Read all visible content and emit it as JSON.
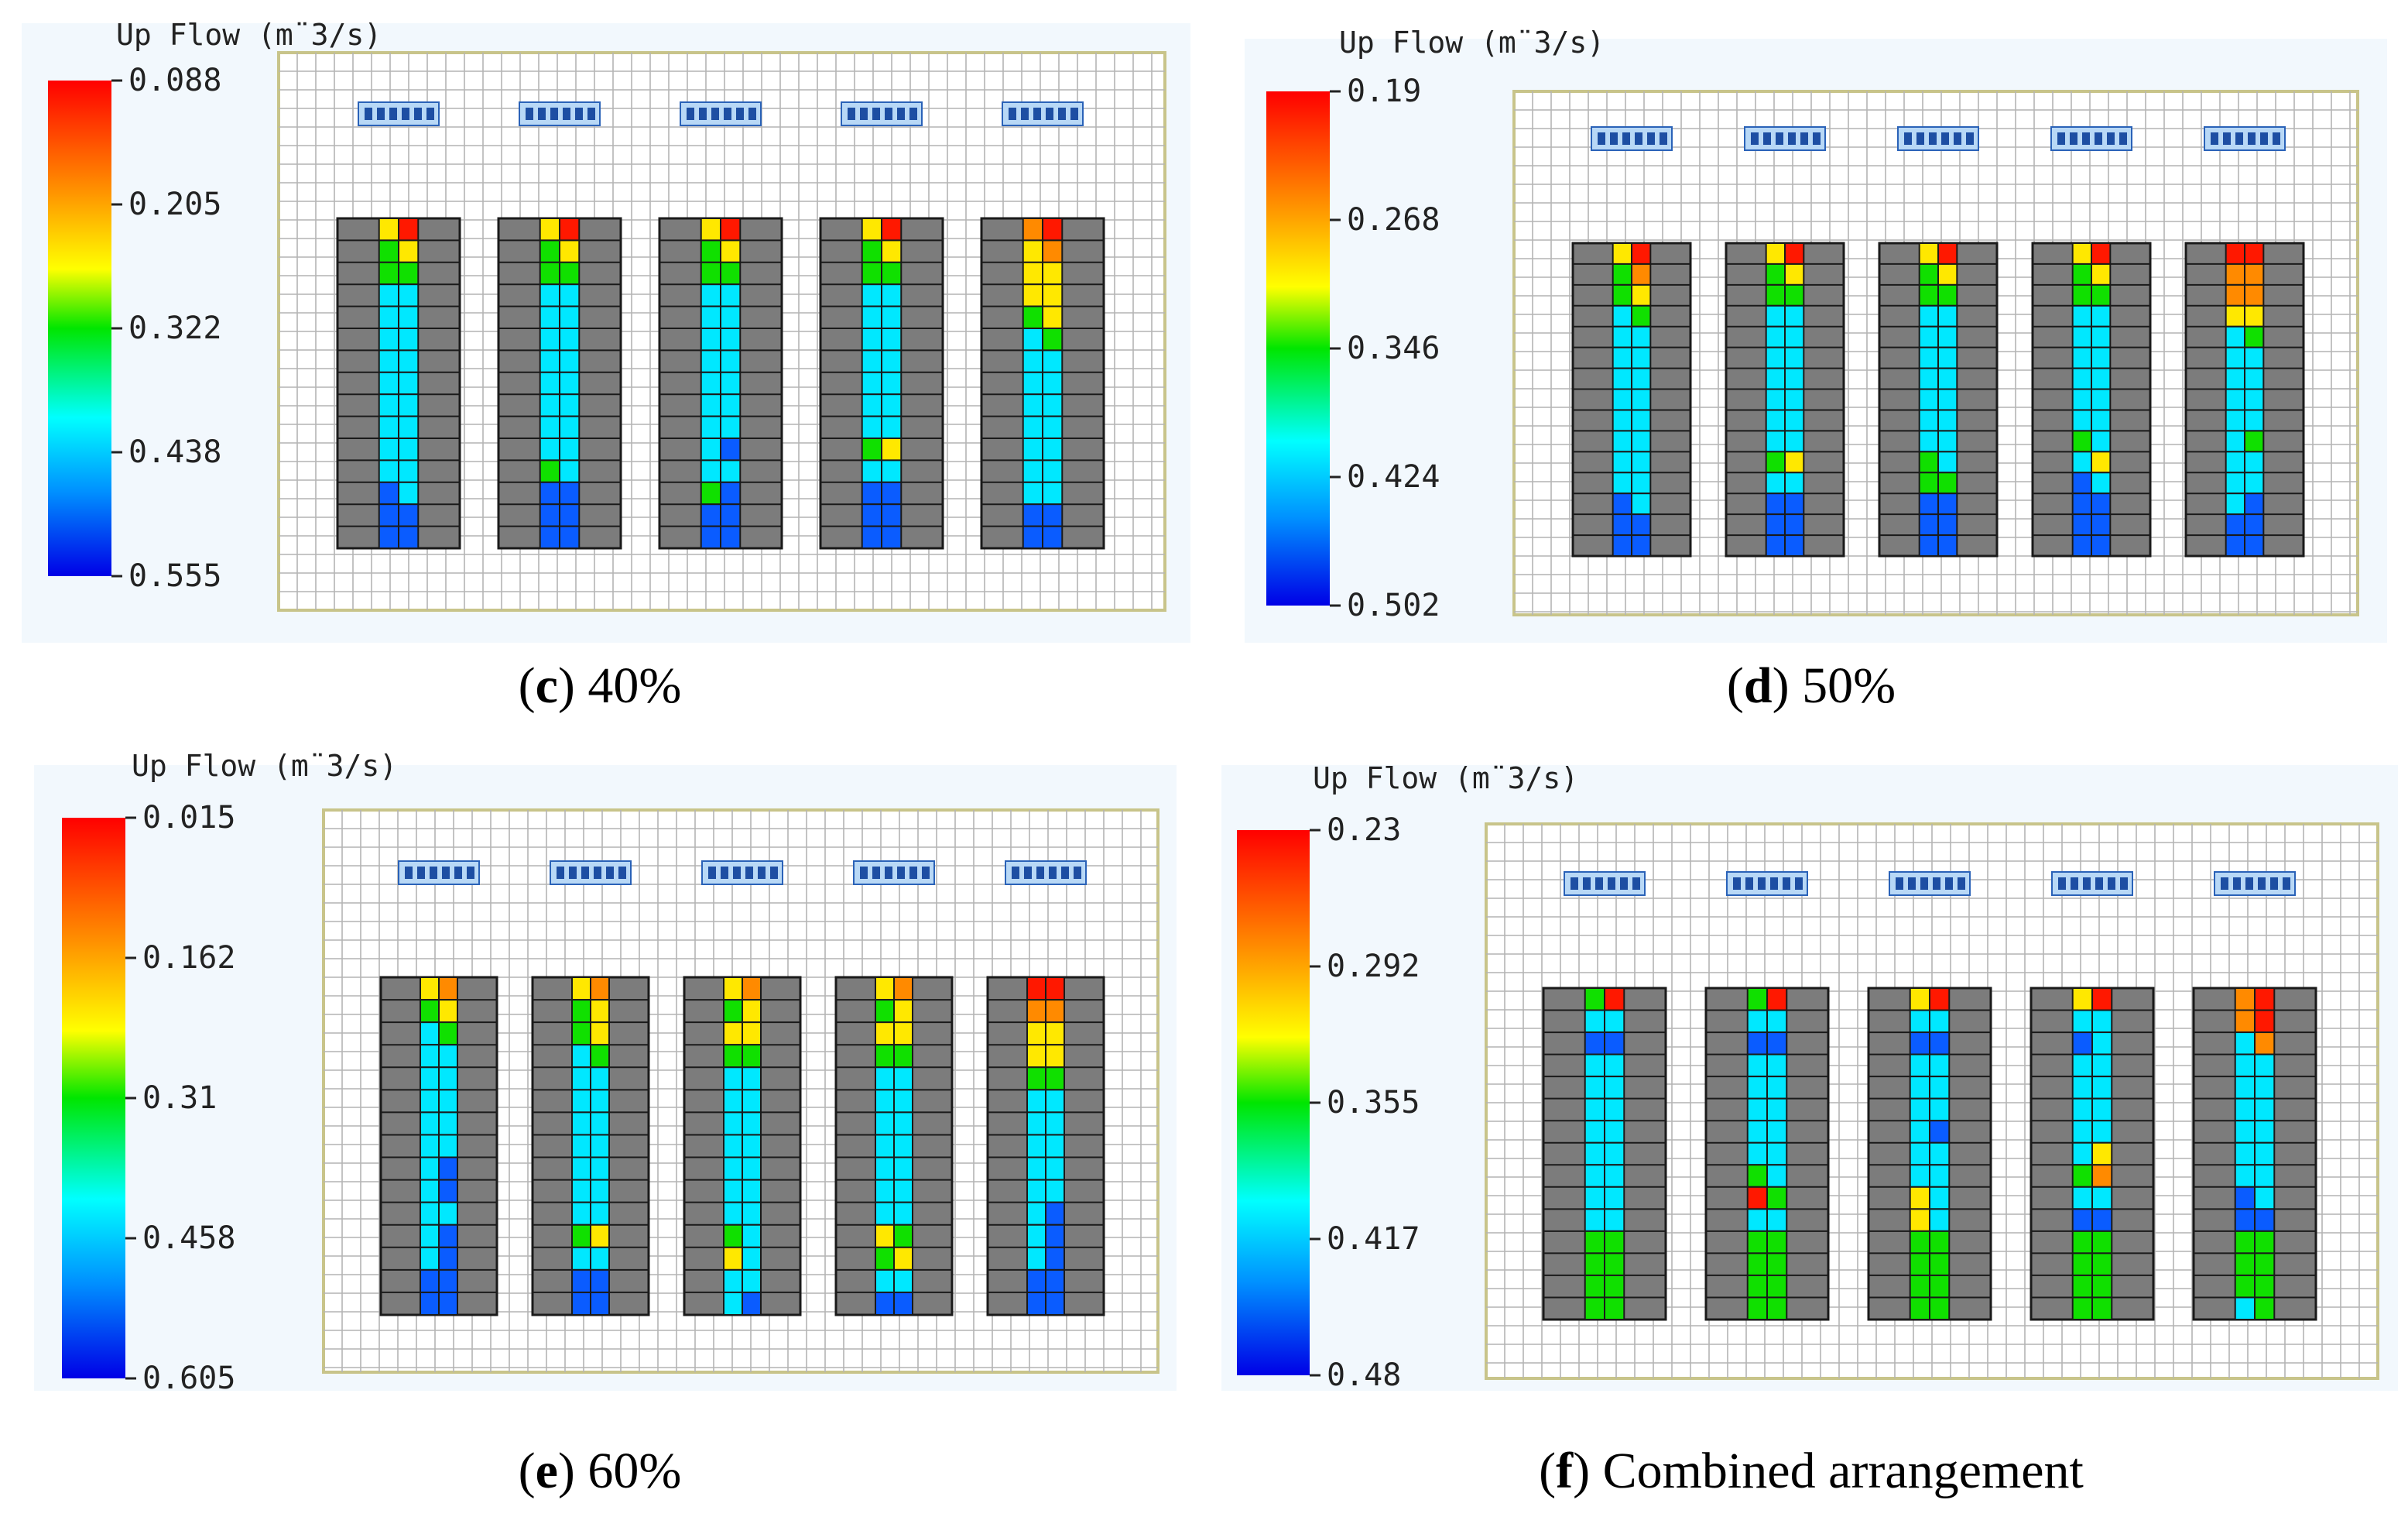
{
  "chart_data": [
    {
      "type": "heatmap",
      "panel_letter": "c",
      "caption": "40%",
      "legend_title": "Up Flow (m¨3/s)",
      "colorbar_ticks": [
        "0.088",
        "0.205",
        "0.322",
        "0.438",
        "0.555"
      ],
      "channels": [
        {
          "left": [
            "Y",
            "G",
            "G",
            "C",
            "C",
            "C",
            "C",
            "C",
            "C",
            "C",
            "C",
            "C",
            "B",
            "B",
            "B"
          ],
          "right": [
            "R",
            "Y",
            "G",
            "C",
            "C",
            "C",
            "C",
            "C",
            "C",
            "C",
            "C",
            "C",
            "C",
            "B",
            "B"
          ]
        },
        {
          "left": [
            "Y",
            "G",
            "G",
            "C",
            "C",
            "C",
            "C",
            "C",
            "C",
            "C",
            "C",
            "G",
            "B",
            "B",
            "B"
          ],
          "right": [
            "R",
            "Y",
            "G",
            "C",
            "C",
            "C",
            "C",
            "C",
            "C",
            "C",
            "C",
            "C",
            "B",
            "B",
            "B"
          ]
        },
        {
          "left": [
            "Y",
            "G",
            "G",
            "C",
            "C",
            "C",
            "C",
            "C",
            "C",
            "C",
            "C",
            "C",
            "G",
            "B",
            "B"
          ],
          "right": [
            "R",
            "Y",
            "G",
            "C",
            "C",
            "C",
            "C",
            "C",
            "C",
            "C",
            "B",
            "C",
            "B",
            "B",
            "B"
          ]
        },
        {
          "left": [
            "Y",
            "G",
            "G",
            "C",
            "C",
            "C",
            "C",
            "C",
            "C",
            "C",
            "G",
            "C",
            "B",
            "B",
            "B"
          ],
          "right": [
            "R",
            "Y",
            "G",
            "C",
            "C",
            "C",
            "C",
            "C",
            "C",
            "C",
            "Y",
            "C",
            "B",
            "B",
            "B"
          ]
        },
        {
          "left": [
            "O",
            "Y",
            "Y",
            "Y",
            "G",
            "C",
            "C",
            "C",
            "C",
            "C",
            "C",
            "C",
            "C",
            "B",
            "B"
          ],
          "right": [
            "R",
            "O",
            "Y",
            "Y",
            "Y",
            "G",
            "C",
            "C",
            "C",
            "C",
            "C",
            "C",
            "C",
            "B",
            "B"
          ]
        }
      ]
    },
    {
      "type": "heatmap",
      "panel_letter": "d",
      "caption": "50%",
      "legend_title": "Up Flow (m¨3/s)",
      "colorbar_ticks": [
        "0.19",
        "0.268",
        "0.346",
        "0.424",
        "0.502"
      ],
      "channels": [
        {
          "left": [
            "Y",
            "G",
            "G",
            "C",
            "C",
            "C",
            "C",
            "C",
            "C",
            "C",
            "C",
            "C",
            "B",
            "B",
            "B"
          ],
          "right": [
            "R",
            "O",
            "Y",
            "G",
            "C",
            "C",
            "C",
            "C",
            "C",
            "C",
            "C",
            "C",
            "C",
            "B",
            "B"
          ]
        },
        {
          "left": [
            "Y",
            "G",
            "G",
            "C",
            "C",
            "C",
            "C",
            "C",
            "C",
            "C",
            "G",
            "C",
            "B",
            "B",
            "B"
          ],
          "right": [
            "R",
            "Y",
            "G",
            "C",
            "C",
            "C",
            "C",
            "C",
            "C",
            "C",
            "Y",
            "C",
            "B",
            "B",
            "B"
          ]
        },
        {
          "left": [
            "Y",
            "G",
            "G",
            "C",
            "C",
            "C",
            "C",
            "C",
            "C",
            "C",
            "G",
            "G",
            "B",
            "B",
            "B"
          ],
          "right": [
            "R",
            "Y",
            "G",
            "C",
            "C",
            "C",
            "C",
            "C",
            "C",
            "C",
            "C",
            "G",
            "B",
            "B",
            "B"
          ]
        },
        {
          "left": [
            "Y",
            "G",
            "G",
            "C",
            "C",
            "C",
            "C",
            "C",
            "C",
            "G",
            "C",
            "B",
            "B",
            "B",
            "B"
          ],
          "right": [
            "R",
            "Y",
            "G",
            "C",
            "C",
            "C",
            "C",
            "C",
            "C",
            "C",
            "Y",
            "C",
            "B",
            "B",
            "B"
          ]
        },
        {
          "left": [
            "R",
            "O",
            "O",
            "Y",
            "C",
            "C",
            "C",
            "C",
            "C",
            "C",
            "C",
            "C",
            "C",
            "B",
            "B"
          ],
          "right": [
            "R",
            "O",
            "O",
            "Y",
            "G",
            "C",
            "C",
            "C",
            "C",
            "G",
            "C",
            "C",
            "B",
            "B",
            "B"
          ]
        }
      ]
    },
    {
      "type": "heatmap",
      "panel_letter": "e",
      "caption": "60%",
      "legend_title": "Up Flow (m¨3/s)",
      "colorbar_ticks": [
        "0.015",
        "0.162",
        "0.31",
        "0.458",
        "0.605"
      ],
      "channels": [
        {
          "left": [
            "Y",
            "G",
            "C",
            "C",
            "C",
            "C",
            "C",
            "C",
            "C",
            "C",
            "C",
            "C",
            "C",
            "B",
            "B"
          ],
          "right": [
            "O",
            "Y",
            "G",
            "C",
            "C",
            "C",
            "C",
            "C",
            "B",
            "B",
            "C",
            "B",
            "B",
            "B",
            "B"
          ]
        },
        {
          "left": [
            "Y",
            "G",
            "G",
            "C",
            "C",
            "C",
            "C",
            "C",
            "C",
            "C",
            "C",
            "G",
            "C",
            "B",
            "B"
          ],
          "right": [
            "O",
            "Y",
            "Y",
            "G",
            "C",
            "C",
            "C",
            "C",
            "C",
            "C",
            "C",
            "Y",
            "C",
            "B",
            "B"
          ]
        },
        {
          "left": [
            "Y",
            "G",
            "Y",
            "G",
            "C",
            "C",
            "C",
            "C",
            "C",
            "C",
            "C",
            "G",
            "Y",
            "C",
            "C"
          ],
          "right": [
            "O",
            "Y",
            "Y",
            "G",
            "C",
            "C",
            "C",
            "C",
            "C",
            "C",
            "C",
            "C",
            "C",
            "C",
            "B"
          ]
        },
        {
          "left": [
            "Y",
            "G",
            "Y",
            "G",
            "C",
            "C",
            "C",
            "C",
            "C",
            "C",
            "C",
            "Y",
            "G",
            "C",
            "B"
          ],
          "right": [
            "O",
            "Y",
            "Y",
            "G",
            "C",
            "C",
            "C",
            "C",
            "C",
            "C",
            "C",
            "G",
            "Y",
            "C",
            "B"
          ]
        },
        {
          "left": [
            "R",
            "O",
            "Y",
            "Y",
            "G",
            "C",
            "C",
            "C",
            "C",
            "C",
            "C",
            "C",
            "C",
            "B",
            "B"
          ],
          "right": [
            "R",
            "O",
            "Y",
            "Y",
            "G",
            "C",
            "C",
            "C",
            "C",
            "C",
            "B",
            "B",
            "B",
            "B",
            "B"
          ]
        }
      ]
    },
    {
      "type": "heatmap",
      "panel_letter": "f",
      "caption": "Combined arrangement",
      "legend_title": "Up Flow (m¨3/s)",
      "colorbar_ticks": [
        "0.23",
        "0.292",
        "0.355",
        "0.417",
        "0.48"
      ],
      "channels": [
        {
          "left": [
            "G",
            "C",
            "B",
            "C",
            "C",
            "C",
            "C",
            "C",
            "C",
            "C",
            "C",
            "G",
            "G",
            "G",
            "G"
          ],
          "right": [
            "R",
            "C",
            "B",
            "C",
            "C",
            "C",
            "C",
            "C",
            "C",
            "C",
            "C",
            "G",
            "G",
            "G",
            "G"
          ]
        },
        {
          "left": [
            "G",
            "C",
            "B",
            "C",
            "C",
            "C",
            "C",
            "C",
            "G",
            "R",
            "C",
            "G",
            "G",
            "G",
            "G"
          ],
          "right": [
            "R",
            "C",
            "B",
            "C",
            "C",
            "C",
            "C",
            "C",
            "C",
            "G",
            "C",
            "G",
            "G",
            "G",
            "G"
          ]
        },
        {
          "left": [
            "Y",
            "C",
            "B",
            "C",
            "C",
            "C",
            "C",
            "C",
            "C",
            "Y",
            "Y",
            "G",
            "G",
            "G",
            "G"
          ],
          "right": [
            "R",
            "C",
            "B",
            "C",
            "C",
            "C",
            "B",
            "C",
            "C",
            "C",
            "C",
            "G",
            "G",
            "G",
            "G"
          ]
        },
        {
          "left": [
            "Y",
            "C",
            "B",
            "C",
            "C",
            "C",
            "C",
            "C",
            "G",
            "C",
            "B",
            "G",
            "G",
            "G",
            "G"
          ],
          "right": [
            "R",
            "C",
            "C",
            "C",
            "C",
            "C",
            "C",
            "Y",
            "O",
            "C",
            "B",
            "G",
            "G",
            "G",
            "G"
          ]
        },
        {
          "left": [
            "O",
            "O",
            "C",
            "C",
            "C",
            "C",
            "C",
            "C",
            "C",
            "B",
            "B",
            "G",
            "G",
            "G",
            "C"
          ],
          "right": [
            "R",
            "R",
            "O",
            "C",
            "C",
            "C",
            "C",
            "C",
            "C",
            "C",
            "B",
            "G",
            "G",
            "G",
            "G"
          ]
        }
      ]
    }
  ]
}
